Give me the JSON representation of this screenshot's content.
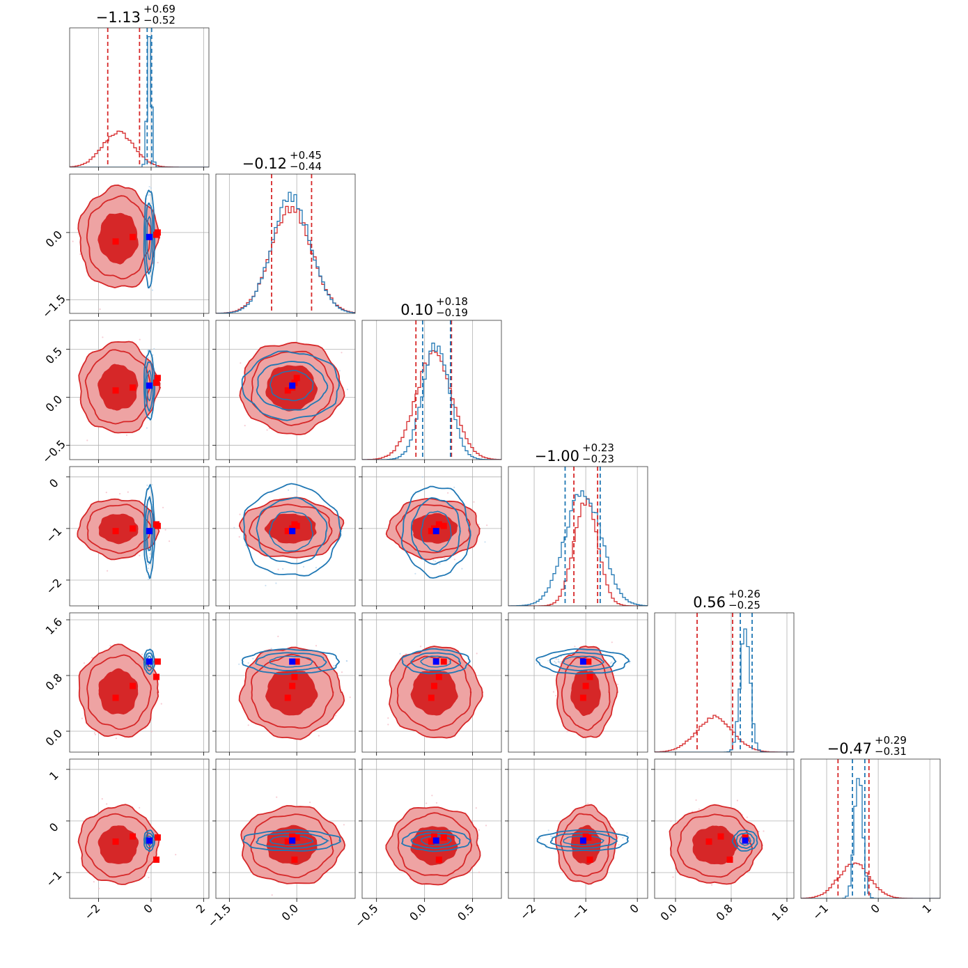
{
  "chart_data": {
    "type": "corner",
    "grid": true,
    "colors": {
      "primary": "#d62728",
      "primary_fill_outer": "#eea3a3",
      "primary_fill_inner": "#d62728",
      "secondary": "#1f77b4",
      "truth_marker": "#0000ff",
      "point_marker": "#ff0000"
    },
    "parameters": [
      {
        "title": {
          "median": "−1.13",
          "plus": "+0.69",
          "minus": "−0.52"
        },
        "range": [
          -3.1,
          2.2
        ],
        "ticks": [
          -2,
          0,
          2
        ],
        "tick_labels": [
          "−2",
          "0",
          "2"
        ],
        "red": {
          "mean": -1.25,
          "sd": 0.6
        },
        "blue": {
          "mean": -0.07,
          "sd": 0.08
        },
        "red_quantiles": [
          -1.65,
          -0.44
        ],
        "blue_quantiles": [
          -0.15,
          0.02
        ],
        "truth": -0.07,
        "points": [
          -1.35,
          -0.7,
          0.2,
          0.25
        ]
      },
      {
        "title": {
          "median": "−0.12",
          "plus": "+0.45",
          "minus": "−0.44"
        },
        "range": [
          -1.8,
          1.3
        ],
        "ticks": [
          -1.5,
          0.0
        ],
        "tick_labels": [
          "−1.5",
          "0.0"
        ],
        "red": {
          "mean": -0.12,
          "sd": 0.45
        },
        "blue": {
          "mean": -0.12,
          "sd": 0.43
        },
        "red_quantiles": [
          -0.56,
          0.33
        ],
        "blue_quantiles": [],
        "truth": -0.1,
        "points": [
          -0.2,
          -0.1,
          -0.05,
          0.0
        ]
      },
      {
        "title": {
          "median": "0.10",
          "plus": "+0.18",
          "minus": "−0.19"
        },
        "range": [
          -0.65,
          0.8
        ],
        "ticks": [
          -0.5,
          0.0,
          0.5
        ],
        "tick_labels": [
          "−0.5",
          "0.0",
          "0.5"
        ],
        "red": {
          "mean": 0.1,
          "sd": 0.19
        },
        "blue": {
          "mean": 0.12,
          "sd": 0.14
        },
        "red_quantiles": [
          -0.09,
          0.28
        ],
        "blue_quantiles": [
          -0.02,
          0.27
        ],
        "truth": 0.12,
        "points": [
          0.07,
          0.1,
          0.15,
          0.2
        ]
      },
      {
        "title": {
          "median": "−1.00",
          "plus": "+0.23",
          "minus": "−0.23"
        },
        "range": [
          -2.5,
          0.2
        ],
        "ticks": [
          -2,
          -1,
          0
        ],
        "tick_labels": [
          "−2",
          "−1",
          "0"
        ],
        "red": {
          "mean": -1.0,
          "sd": 0.23
        },
        "blue": {
          "mean": -1.05,
          "sd": 0.35
        },
        "red_quantiles": [
          -1.23,
          -0.77
        ],
        "blue_quantiles": [
          -1.4,
          -0.72
        ],
        "truth": -1.05,
        "points": [
          -1.05,
          -1.0,
          -0.92,
          -0.95
        ]
      },
      {
        "title": {
          "median": "0.56",
          "plus": "+0.26",
          "minus": "−0.25"
        },
        "range": [
          -0.3,
          1.7
        ],
        "ticks": [
          0.0,
          0.8,
          1.6
        ],
        "tick_labels": [
          "0.0",
          "0.8",
          "1.6"
        ],
        "red": {
          "mean": 0.56,
          "sd": 0.26
        },
        "blue": {
          "mean": 1.0,
          "sd": 0.07
        },
        "red_quantiles": [
          0.31,
          0.82
        ],
        "blue_quantiles": [
          0.93,
          1.1
        ],
        "truth": 1.0,
        "points": [
          0.48,
          0.65,
          0.78,
          1.0
        ]
      },
      {
        "title": {
          "median": "−0.47",
          "plus": "+0.29",
          "minus": "−0.31"
        },
        "range": [
          -1.5,
          1.2
        ],
        "ticks": [
          -1,
          0,
          1
        ],
        "tick_labels": [
          "−1",
          "0",
          "1"
        ],
        "red": {
          "mean": -0.47,
          "sd": 0.3
        },
        "blue": {
          "mean": -0.38,
          "sd": 0.08
        },
        "red_quantiles": [
          -0.78,
          -0.18
        ],
        "blue_quantiles": [
          -0.5,
          -0.26
        ],
        "truth": -0.38,
        "points": [
          -0.4,
          -0.3,
          -0.75,
          -0.32
        ]
      }
    ],
    "y_tick_params": [
      1,
      2,
      3,
      4,
      5
    ],
    "y_ticks": {
      "1": {
        "ticks": [
          0.0,
          -1.5
        ],
        "tick_labels": [
          "0.0",
          "−1.5"
        ]
      },
      "2": {
        "ticks": [
          0.5,
          0.0,
          -0.5
        ],
        "tick_labels": [
          "0.5",
          "0.0",
          "−0.5"
        ]
      },
      "3": {
        "ticks": [
          0,
          -1,
          -2
        ],
        "tick_labels": [
          "0",
          "−1",
          "−2"
        ]
      },
      "4": {
        "ticks": [
          1.6,
          0.8,
          0.0
        ],
        "tick_labels": [
          "1.6",
          "0.8",
          "0.0"
        ]
      },
      "5": {
        "ticks": [
          1,
          0,
          -1
        ],
        "tick_labels": [
          "1",
          "0",
          "−1"
        ]
      }
    }
  }
}
